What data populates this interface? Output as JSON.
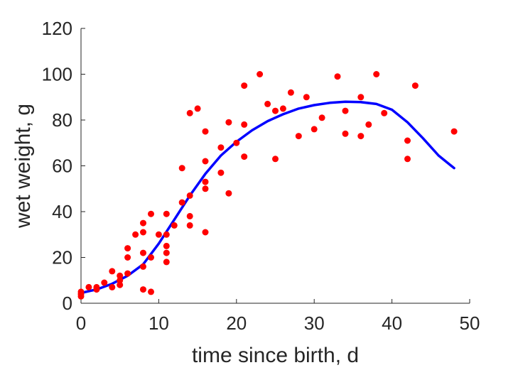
{
  "chart_data": {
    "type": "scatter",
    "xlabel": "time since birth, d",
    "ylabel": "wet weight, g",
    "xlim": [
      0,
      50
    ],
    "ylim": [
      0,
      120
    ],
    "xticks": [
      0,
      10,
      20,
      30,
      40,
      50
    ],
    "yticks": [
      0,
      20,
      40,
      60,
      80,
      100,
      120
    ],
    "grid": false,
    "legend": "none",
    "series": [
      {
        "kind": "points",
        "color": "#ff0000",
        "points": [
          [
            0,
            5
          ],
          [
            0,
            4
          ],
          [
            0,
            3
          ],
          [
            1,
            7
          ],
          [
            2,
            6
          ],
          [
            2,
            7
          ],
          [
            3,
            9
          ],
          [
            4,
            7
          ],
          [
            4,
            14
          ],
          [
            5,
            10
          ],
          [
            5,
            8
          ],
          [
            5,
            12
          ],
          [
            6,
            13
          ],
          [
            6,
            20
          ],
          [
            6,
            24
          ],
          [
            7,
            30
          ],
          [
            8,
            35
          ],
          [
            8,
            31
          ],
          [
            8,
            22
          ],
          [
            8,
            16
          ],
          [
            8,
            6
          ],
          [
            9,
            5
          ],
          [
            9,
            20
          ],
          [
            9,
            39
          ],
          [
            10,
            30
          ],
          [
            11,
            39
          ],
          [
            11,
            25
          ],
          [
            11,
            22
          ],
          [
            11,
            18
          ],
          [
            11,
            30
          ],
          [
            12,
            34
          ],
          [
            13,
            44
          ],
          [
            13,
            59
          ],
          [
            14,
            47
          ],
          [
            14,
            83
          ],
          [
            14,
            38
          ],
          [
            14,
            34
          ],
          [
            15,
            85
          ],
          [
            16,
            75
          ],
          [
            16,
            53
          ],
          [
            16,
            50
          ],
          [
            16,
            62
          ],
          [
            16,
            31
          ],
          [
            18,
            68
          ],
          [
            18,
            57
          ],
          [
            19,
            79
          ],
          [
            19,
            48
          ],
          [
            20,
            70
          ],
          [
            21,
            95
          ],
          [
            21,
            78
          ],
          [
            21,
            64
          ],
          [
            23,
            100
          ],
          [
            24,
            87
          ],
          [
            25,
            84
          ],
          [
            25,
            63
          ],
          [
            26,
            85
          ],
          [
            27,
            92
          ],
          [
            28,
            73
          ],
          [
            29,
            90
          ],
          [
            30,
            76
          ],
          [
            31,
            81
          ],
          [
            33,
            99
          ],
          [
            34,
            84
          ],
          [
            34,
            74
          ],
          [
            36,
            90
          ],
          [
            36,
            73
          ],
          [
            37,
            78
          ],
          [
            38,
            100
          ],
          [
            39,
            83
          ],
          [
            42,
            71
          ],
          [
            42,
            63
          ],
          [
            43,
            95
          ],
          [
            48,
            75
          ]
        ]
      },
      {
        "kind": "line",
        "color": "#0000ff",
        "x": [
          0,
          2,
          4,
          6,
          8,
          10,
          12,
          14,
          16,
          18,
          20,
          22,
          24,
          26,
          28,
          30,
          32,
          34,
          36,
          38,
          40,
          42,
          44,
          46,
          48
        ],
        "y": [
          4.5,
          6,
          8.5,
          12,
          17,
          26,
          36.5,
          47,
          56.5,
          64.5,
          70.5,
          75.5,
          79.5,
          82.5,
          85,
          86.5,
          87.5,
          88,
          87.8,
          87,
          84.5,
          79,
          72,
          64.5,
          59
        ]
      }
    ]
  }
}
